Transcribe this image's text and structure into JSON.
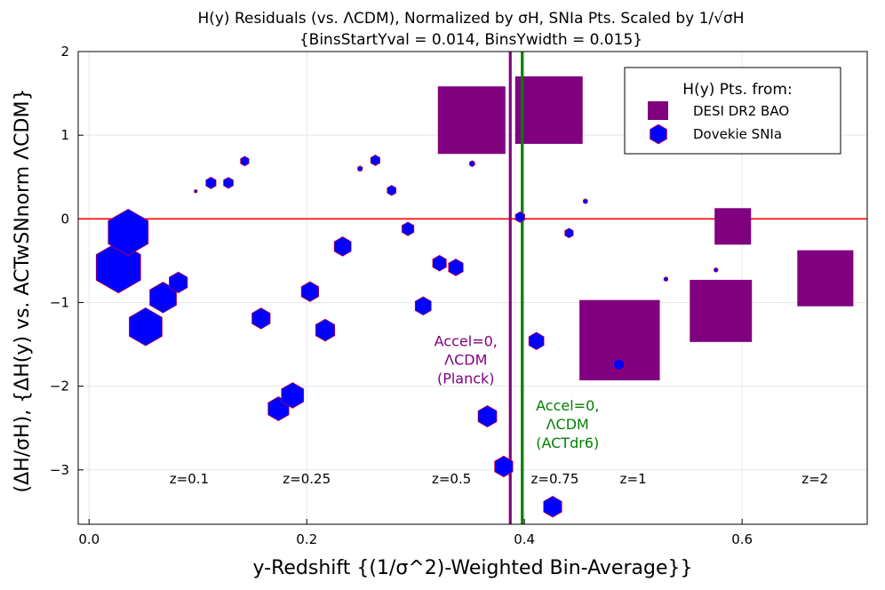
{
  "chart_data": {
    "type": "scatter",
    "title": "H(y) Residuals (vs. ΛCDM), Normalized by σH, SNIa Pts. Scaled by 1/√σH",
    "subtitle": "{BinsStartYval = 0.014, BinsYwidth = 0.015}",
    "xlabel": "y-Redshift {(1/σ^2)-Weighted Bin-Average}}",
    "ylabel": "(ΔH/σH), {ΔH(y) vs. ACTwSNnorm ΛCDM}",
    "xlim": [
      -0.01,
      0.715
    ],
    "ylim": [
      -3.65,
      2.0
    ],
    "xticks": [
      0.0,
      0.2,
      0.4,
      0.6
    ],
    "xtick_labels": [
      "0.0",
      "0.2",
      "0.4",
      "0.6"
    ],
    "yticks": [
      -3,
      -2,
      -1,
      0,
      1,
      2
    ],
    "ytick_labels": [
      "−3",
      "−2",
      "−1",
      "0",
      "1",
      "2"
    ],
    "grid": true,
    "legend": {
      "title": "H(y) Pts. from:",
      "position": "top-right",
      "entries": [
        "DESI DR2 BAO",
        "Dovekie SNIa"
      ]
    },
    "colors": {
      "desi": "#800080",
      "snia": "#0000ff",
      "zero_line": "#ff0000",
      "planck_line": "#800080",
      "act_line": "#008000",
      "grid": "#e6e6e6"
    },
    "reference_line": {
      "y": 0
    },
    "vertical_lines": [
      {
        "name": "Planck",
        "x": 0.387,
        "label": [
          "Accel=0,",
          "ΛCDM",
          "(Planck)"
        ],
        "color": "#800080"
      },
      {
        "name": "ACTdr6",
        "x": 0.398,
        "label": [
          "Accel=0,",
          "ΛCDM",
          "(ACTdr6)"
        ],
        "color": "#008000"
      }
    ],
    "z_markers": [
      {
        "label": "z=0.1",
        "x": 0.092
      },
      {
        "label": "z=0.25",
        "x": 0.2
      },
      {
        "label": "z=0.5",
        "x": 0.333
      },
      {
        "label": "z=0.75",
        "x": 0.428
      },
      {
        "label": "z=1",
        "x": 0.5
      },
      {
        "label": "z=2",
        "x": 0.667
      }
    ],
    "series": [
      {
        "name": "DESI DR2 BAO",
        "marker": "square",
        "color": "#800080",
        "points": [
          {
            "x": 0.3515,
            "y": 1.18,
            "size": 1.0
          },
          {
            "x": 0.4225,
            "y": 1.3,
            "size": 1.0
          },
          {
            "x": 0.4875,
            "y": -1.45,
            "size": 1.19
          },
          {
            "x": 0.5805,
            "y": -1.1,
            "size": 0.92
          },
          {
            "x": 0.5915,
            "y": -0.09,
            "size": 0.54
          },
          {
            "x": 0.6765,
            "y": -0.71,
            "size": 0.83
          }
        ]
      },
      {
        "name": "Dovekie SNIa",
        "marker": "hexagon",
        "color": "#0000ff",
        "points": [
          {
            "x": 0.027,
            "y": -0.58,
            "size": 1.0
          },
          {
            "x": 0.036,
            "y": -0.16,
            "size": 0.9
          },
          {
            "x": 0.052,
            "y": -1.29,
            "size": 0.74
          },
          {
            "x": 0.068,
            "y": -0.94,
            "size": 0.6
          },
          {
            "x": 0.082,
            "y": -0.76,
            "size": 0.41
          },
          {
            "x": 0.098,
            "y": 0.33,
            "size": 0.07
          },
          {
            "x": 0.112,
            "y": 0.43,
            "size": 0.23
          },
          {
            "x": 0.128,
            "y": 0.43,
            "size": 0.22
          },
          {
            "x": 0.143,
            "y": 0.69,
            "size": 0.19
          },
          {
            "x": 0.158,
            "y": -1.19,
            "size": 0.41
          },
          {
            "x": 0.174,
            "y": -2.27,
            "size": 0.47
          },
          {
            "x": 0.187,
            "y": -2.11,
            "size": 0.5
          },
          {
            "x": 0.203,
            "y": -0.87,
            "size": 0.39
          },
          {
            "x": 0.217,
            "y": -1.33,
            "size": 0.43
          },
          {
            "x": 0.233,
            "y": -0.33,
            "size": 0.38
          },
          {
            "x": 0.249,
            "y": 0.6,
            "size": 0.11
          },
          {
            "x": 0.263,
            "y": 0.7,
            "size": 0.21
          },
          {
            "x": 0.278,
            "y": 0.34,
            "size": 0.2
          },
          {
            "x": 0.293,
            "y": -0.12,
            "size": 0.27
          },
          {
            "x": 0.307,
            "y": -1.04,
            "size": 0.36
          },
          {
            "x": 0.322,
            "y": -0.53,
            "size": 0.31
          },
          {
            "x": 0.337,
            "y": -0.58,
            "size": 0.33
          },
          {
            "x": 0.352,
            "y": 0.66,
            "size": 0.12
          },
          {
            "x": 0.366,
            "y": -2.36,
            "size": 0.42
          },
          {
            "x": 0.381,
            "y": -2.96,
            "size": 0.41
          },
          {
            "x": 0.396,
            "y": 0.02,
            "size": 0.21
          },
          {
            "x": 0.411,
            "y": -1.46,
            "size": 0.34
          },
          {
            "x": 0.426,
            "y": -3.44,
            "size": 0.41
          },
          {
            "x": 0.441,
            "y": -0.17,
            "size": 0.19
          },
          {
            "x": 0.456,
            "y": 0.21,
            "size": 0.1
          },
          {
            "x": 0.487,
            "y": -1.74,
            "size": 0.24
          },
          {
            "x": 0.53,
            "y": -0.72,
            "size": 0.09
          },
          {
            "x": 0.576,
            "y": -0.61,
            "size": 0.09
          }
        ]
      }
    ]
  }
}
